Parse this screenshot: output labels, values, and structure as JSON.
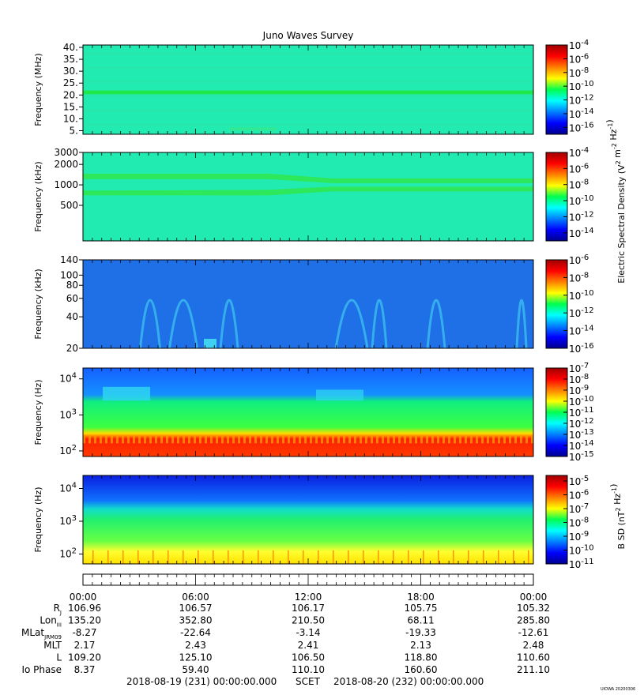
{
  "title": "Juno Waves Survey",
  "watermark": "UIOWA 20200306",
  "colorbar_labels": {
    "electric": "Electric Spectral Density (V^2 m^-2 Hz^-1)",
    "magnetic": "B SD (nT^2 Hz^-1)"
  },
  "chart_data": [
    {
      "type": "heatmap",
      "name": "panel-1",
      "ylabel": "Frequency (MHz)",
      "yscale": "linear",
      "ylim": [
        3.5,
        41
      ],
      "yticks": [
        {
          "v": 5,
          "t": "5."
        },
        {
          "v": 10,
          "t": "10."
        },
        {
          "v": 15,
          "t": "15."
        },
        {
          "v": 20,
          "t": "20."
        },
        {
          "v": 25,
          "t": "25."
        },
        {
          "v": 30,
          "t": "30."
        },
        {
          "v": 35,
          "t": "35."
        },
        {
          "v": 40,
          "t": "40."
        }
      ],
      "colorbar": {
        "range_exp": [
          -17,
          -4
        ],
        "ticks": [
          "-4",
          "-6",
          "-8",
          "-10",
          "-12",
          "-14",
          "-16"
        ],
        "label": "electric"
      },
      "features": "uniform background ~1e-12; strong narrow band near 21 MHz"
    },
    {
      "type": "heatmap",
      "name": "panel-2",
      "ylabel": "Frequency (kHz)",
      "yscale": "log",
      "ylim": [
        150,
        3000
      ],
      "yticks": [
        {
          "v": 500,
          "t": "500"
        },
        {
          "v": 1000,
          "t": "1000"
        },
        {
          "v": 2000,
          "t": "2000"
        },
        {
          "v": 3000,
          "t": "3000"
        }
      ],
      "colorbar": {
        "range_exp": [
          -15,
          -4
        ],
        "ticks": [
          "-4",
          "-6",
          "-8",
          "-10",
          "-12",
          "-14"
        ],
        "label": "electric"
      },
      "features": "two emission bands near 1350 kHz and 750 kHz converging after 12:00"
    },
    {
      "type": "heatmap",
      "name": "panel-3",
      "ylabel": "Frequency (kHz)",
      "yscale": "log",
      "ylim": [
        20,
        140
      ],
      "yticks": [
        {
          "v": 20,
          "t": "20"
        },
        {
          "v": 40,
          "t": "40"
        },
        {
          "v": 60,
          "t": "60"
        },
        {
          "v": 80,
          "t": "80"
        },
        {
          "v": 100,
          "t": "100"
        },
        {
          "v": 140,
          "t": "140"
        }
      ],
      "colorbar": {
        "range_exp": [
          -16,
          -6
        ],
        "ticks": [
          "-6",
          "-8",
          "-10",
          "-12",
          "-14",
          "-16"
        ],
        "label": "electric"
      },
      "features": "blue background with arc-shaped emissions around 04:00, 08:00, 15:00, 18:00 and 24:00"
    },
    {
      "type": "heatmap",
      "name": "panel-4",
      "ylabel": "Frequency (Hz)",
      "yscale": "log",
      "ylim": [
        70,
        20000
      ],
      "yticks": [
        {
          "v": 100,
          "t": "10^2"
        },
        {
          "v": 1000,
          "t": "10^3"
        },
        {
          "v": 10000,
          "t": "10^4"
        }
      ],
      "colorbar": {
        "range_exp": [
          -15,
          -7
        ],
        "ticks": [
          "-7",
          "-8",
          "-9",
          "-10",
          "-11",
          "-12",
          "-13",
          "-14",
          "-15"
        ],
        "label": "electric"
      },
      "features": "intense emission below ~200 Hz, green 300-2000 Hz, blue above ~2500 Hz"
    },
    {
      "type": "heatmap",
      "name": "panel-5",
      "ylabel": "Frequency (Hz)",
      "yscale": "log",
      "ylim": [
        50,
        25000
      ],
      "yticks": [
        {
          "v": 100,
          "t": "10^2"
        },
        {
          "v": 1000,
          "t": "10^3"
        },
        {
          "v": 10000,
          "t": "10^4"
        }
      ],
      "colorbar": {
        "range_exp": [
          -11,
          -4.6
        ],
        "ticks": [
          "-5",
          "-6",
          "-7",
          "-8",
          "-9",
          "-10",
          "-11"
        ],
        "label": "magnetic"
      },
      "features": "yellow below ~150 Hz, green to ~2000 Hz, blue above"
    }
  ],
  "xaxis": {
    "range_hours": [
      0,
      24
    ],
    "ticks": [
      {
        "h": 0,
        "t": "00:00"
      },
      {
        "h": 6,
        "t": "06:00"
      },
      {
        "h": 12,
        "t": "12:00"
      },
      {
        "h": 18,
        "t": "18:00"
      },
      {
        "h": 24,
        "t": "00:00"
      }
    ]
  },
  "ephemeris": [
    {
      "label": "R",
      "sub": "J",
      "values": [
        "106.96",
        "106.57",
        "106.17",
        "105.75",
        "105.32"
      ]
    },
    {
      "label": "Lon",
      "sub": "III",
      "values": [
        "135.20",
        "352.80",
        "210.50",
        "68.11",
        "285.80"
      ]
    },
    {
      "label": "MLat",
      "sub": "JRM09",
      "values": [
        "-8.27",
        "-22.64",
        "-3.14",
        "-19.33",
        "-12.61"
      ]
    },
    {
      "label": "MLT",
      "sub": "",
      "values": [
        "2.17",
        "2.43",
        "2.41",
        "2.13",
        "2.48"
      ]
    },
    {
      "label": "L",
      "sub": "",
      "values": [
        "109.20",
        "125.10",
        "106.50",
        "118.80",
        "110.60"
      ]
    },
    {
      "label": "Io Phase",
      "sub": "",
      "values": [
        "8.37",
        "59.40",
        "110.10",
        "160.60",
        "211.10"
      ]
    }
  ],
  "footer": {
    "start": "2018-08-19 (231) 00:00:00.000",
    "scet": "SCET",
    "end": "2018-08-20 (232) 00:00:00.000"
  }
}
